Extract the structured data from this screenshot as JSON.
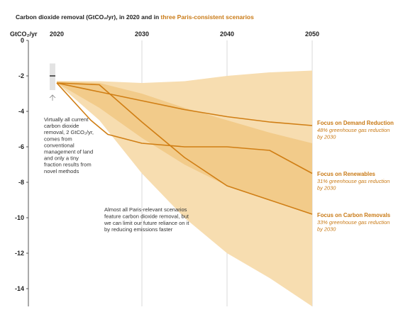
{
  "title": {
    "prefix": "Carbon dioxide removal (GtCO₂/yr), in 2020 and in ",
    "highlight": "three Paris-consistent scenarios"
  },
  "colors": {
    "accent": "#c97a16",
    "line": "#d07e14",
    "band_outer": "#f7ddb0",
    "band_inner": "#f0c47d",
    "grid": "#d9d9d9",
    "text": "#222222"
  },
  "chart_data": {
    "type": "line",
    "ylabel": "GtCO₂/yr",
    "xlim": [
      2020,
      2050
    ],
    "ylim": [
      -15,
      0
    ],
    "x_ticks": [
      "2020",
      "2030",
      "2040",
      "2050"
    ],
    "y_ticks": [
      "0",
      "-2",
      "-4",
      "-6",
      "-8",
      "-10",
      "-12",
      "-14"
    ],
    "y_tick_values": [
      0,
      -2,
      -4,
      -6,
      -8,
      -10,
      -12,
      -14
    ],
    "grid": "vertical",
    "current_2020": {
      "value": -2,
      "range": [
        -1.3,
        -2.8
      ]
    },
    "range_outer": {
      "x": [
        2020,
        2025,
        2030,
        2035,
        2040,
        2045,
        2050
      ],
      "upper": [
        -2.3,
        -2.3,
        -2.4,
        -2.3,
        -2.0,
        -1.8,
        -1.7
      ],
      "lower": [
        -2.4,
        -4.5,
        -7.5,
        -10.0,
        -12.0,
        -13.4,
        -15.0
      ]
    },
    "range_inner": {
      "x": [
        2020,
        2025,
        2030,
        2035,
        2040,
        2045,
        2050
      ],
      "upper": [
        -2.3,
        -2.4,
        -3.0,
        -3.8,
        -4.5,
        -5.2,
        -5.8
      ],
      "lower": [
        -2.4,
        -3.8,
        -5.5,
        -7.0,
        -8.2,
        -9.0,
        -9.8
      ]
    },
    "series": [
      {
        "name": "Focus on Demand Reduction",
        "note": "48% greenhouse gas reduction by 2030",
        "x": [
          2020,
          2025,
          2030,
          2035,
          2040,
          2045,
          2050
        ],
        "values": [
          -2.4,
          -2.9,
          -3.4,
          -3.9,
          -4.3,
          -4.6,
          -4.8
        ]
      },
      {
        "name": "Focus on Renewables",
        "note": "31% greenhouse gas reduction by 2030",
        "x": [
          2020,
          2024,
          2026,
          2030,
          2035,
          2040,
          2045,
          2050
        ],
        "values": [
          -2.4,
          -4.5,
          -5.3,
          -5.8,
          -6.0,
          -6.0,
          -6.2,
          -7.5
        ]
      },
      {
        "name": "Focus on Carbon Removals",
        "note": "33% greenhouse gas reduction by 2030",
        "x": [
          2020,
          2025,
          2030,
          2035,
          2040,
          2045,
          2050
        ],
        "values": [
          -2.4,
          -2.5,
          -4.6,
          -6.6,
          -8.2,
          -9.0,
          -9.8
        ]
      }
    ]
  },
  "annotations": {
    "current": [
      "Virtually all current",
      "carbon dioxide",
      "removal, 2 GtCO₂/yr,",
      "comes from",
      "conventional",
      "management of land",
      "and only a tiny",
      "fraction results from",
      "novel methods"
    ],
    "paris": [
      "Almost all Paris-relevant scenarios",
      "feature carbon dioxide removal, but",
      "we can limit our future reliance on it",
      "by reducing emissions faster"
    ]
  },
  "labels": [
    {
      "main": "Focus on Demand Reduction",
      "sub1": "48% greenhouse gas reduction",
      "sub2": "by 2030"
    },
    {
      "main": "Focus on Renewables",
      "sub1": "31% greenhouse gas reduction",
      "sub2": "by 2030"
    },
    {
      "main": "Focus on Carbon Removals",
      "sub1": "33% greenhouse gas reduction",
      "sub2": "by 2030"
    }
  ]
}
